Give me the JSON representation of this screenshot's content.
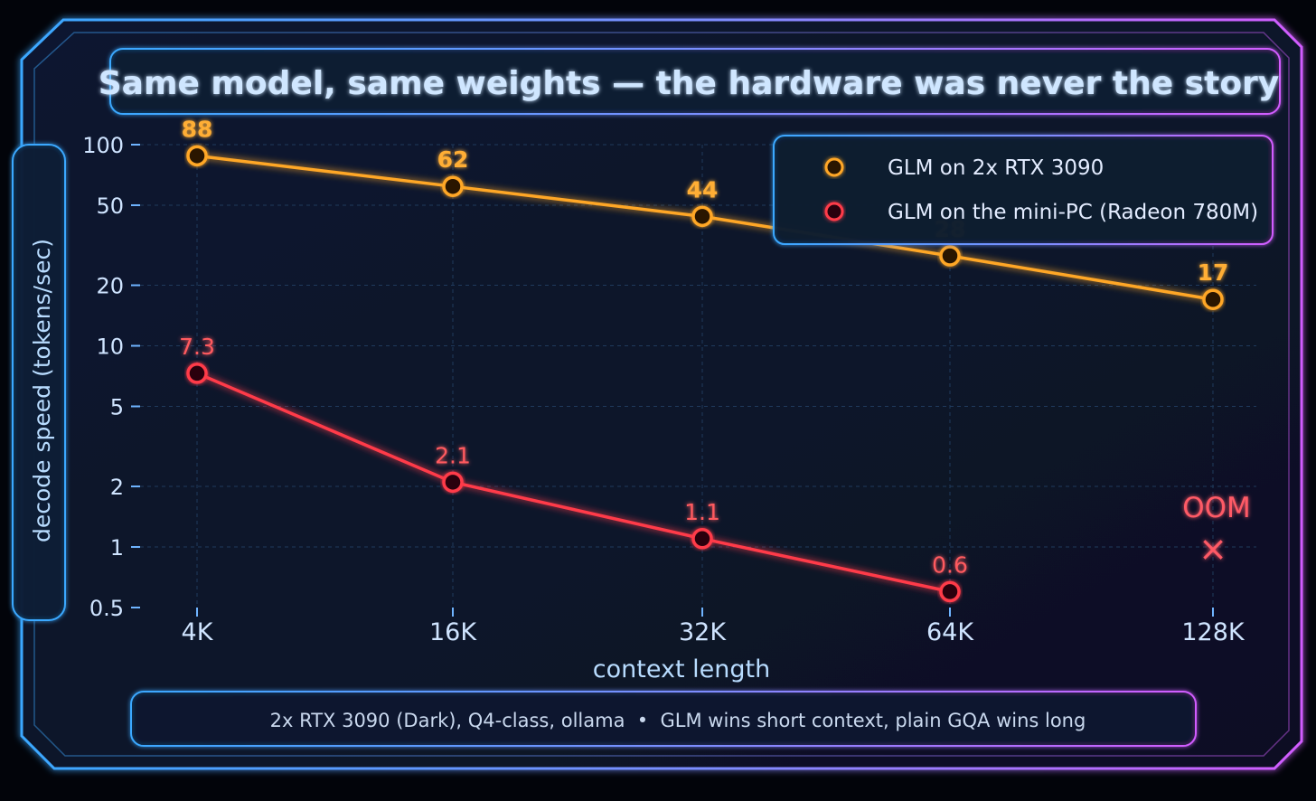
{
  "colors": {
    "series_a": "#ffa726",
    "series_b": "#ff3b4a",
    "frame_left": "#3aa8ff",
    "frame_right": "#d25cff",
    "grid": "#1f3a5c",
    "axis": "#6fb4ff"
  },
  "chart_data": {
    "type": "line",
    "title": "Same model, same weights — the hardware was never the story",
    "xlabel": "context length",
    "ylabel": "decode speed (tokens/sec)",
    "y_scale": "log",
    "ylim": [
      0.5,
      100
    ],
    "y_ticks": [
      "100",
      "50",
      "20",
      "10",
      "5",
      "2",
      "1",
      "0.5"
    ],
    "categories": [
      "4K",
      "16K",
      "32K",
      "64K",
      "128K"
    ],
    "grid": true,
    "legend_position": "top-right",
    "series": [
      {
        "name": "GLM on 2x RTX 3090",
        "values": [
          88,
          62,
          44,
          28,
          17
        ],
        "labels": [
          "88",
          "62",
          "44",
          "28",
          "17"
        ]
      },
      {
        "name": "GLM on the mini-PC (Radeon 780M)",
        "values": [
          7.3,
          2.1,
          1.1,
          0.6,
          null
        ],
        "labels": [
          "7.3",
          "2.1",
          "1.1",
          "0.6",
          ""
        ]
      }
    ],
    "annotations": [
      {
        "text": "OOM",
        "category": "128K",
        "series": 1,
        "marker": "×"
      }
    ],
    "footer": "2x RTX 3090 (Dark), Q4-class, ollama  •  GLM wins short context, plain GQA wins long"
  }
}
